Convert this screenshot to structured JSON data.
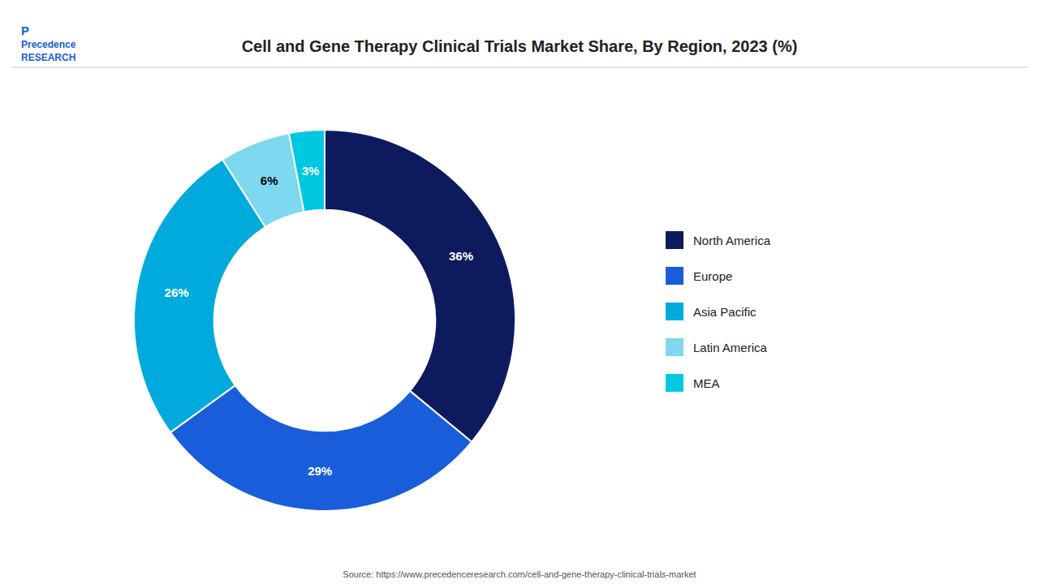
{
  "chart_data": {
    "type": "donut",
    "title": "Cell and Gene Therapy Clinical Trials Market Share, By Region, 2023 (%)",
    "categories": [
      "North America",
      "Europe",
      "Asia Pacific",
      "Latin America",
      "MEA"
    ],
    "values": [
      36,
      29,
      26,
      6,
      3
    ],
    "value_labels": [
      "36%",
      "29%",
      "26%",
      "6%",
      "3%"
    ],
    "colors": [
      "#0d1b5e",
      "#1a5ddb",
      "#00aadd",
      "#7dd8f0",
      "#00c8e0"
    ],
    "data_labels": true,
    "legend": "right",
    "annotations": [
      "Source: https://www.precedenceresearch.com/cell-and-gene-therapy-clinical-trials-market",
      "Precedence",
      "RESEARCH",
      "P"
    ]
  }
}
